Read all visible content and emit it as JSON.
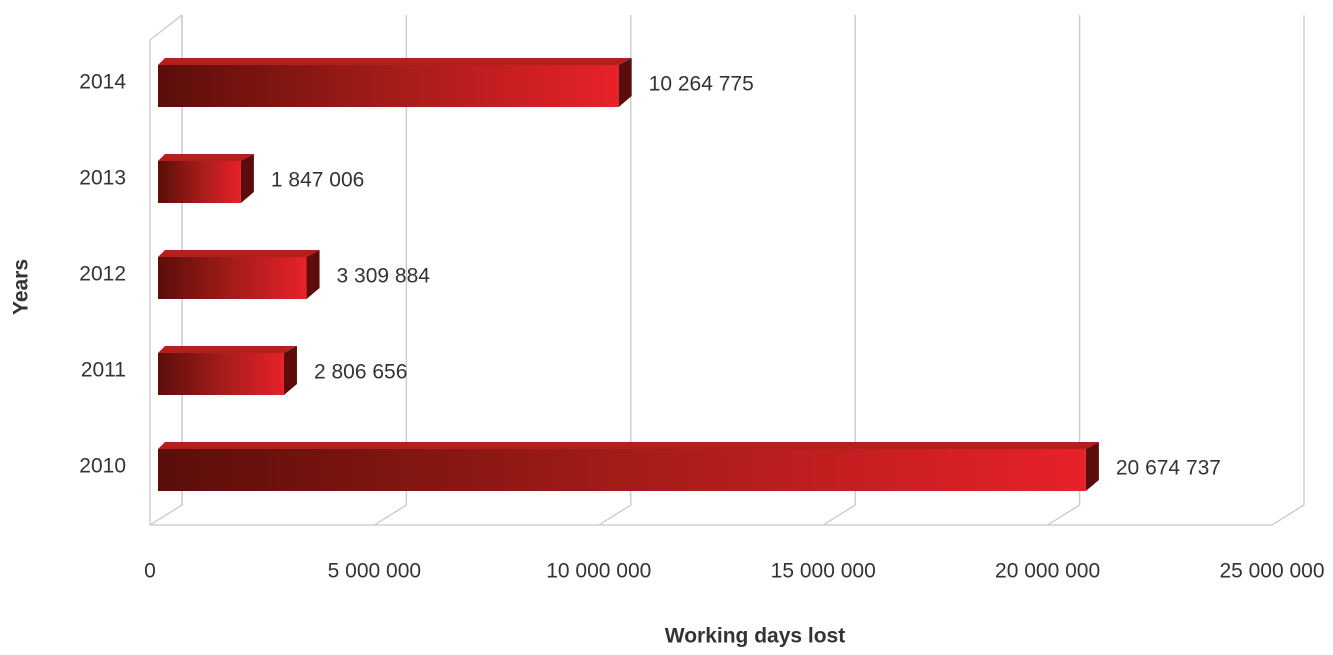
{
  "chart_data": {
    "type": "bar",
    "orientation": "horizontal",
    "x_label": "Working days lost",
    "y_label": "Years",
    "categories": [
      "2014",
      "2013",
      "2012",
      "2011",
      "2010"
    ],
    "values": [
      10264775,
      1847006,
      3309884,
      2806656,
      20674737
    ],
    "value_labels": [
      "10 264 775",
      "1 847 006",
      "3 309 884",
      "2 806 656",
      "20 674 737"
    ],
    "color": "#e3202a",
    "xlim": [
      0,
      25000000
    ],
    "xticks": [
      0,
      {
        "value": 5000000,
        "label": "5 000 000"
      },
      {
        "value": 10000000,
        "label": "10 000 000"
      },
      {
        "value": 15000000,
        "label": "15 000 000"
      },
      {
        "value": 20000000,
        "label": "20 000 000"
      },
      {
        "value": 25000000,
        "label": "25 000 000"
      }
    ],
    "grid": true
  }
}
